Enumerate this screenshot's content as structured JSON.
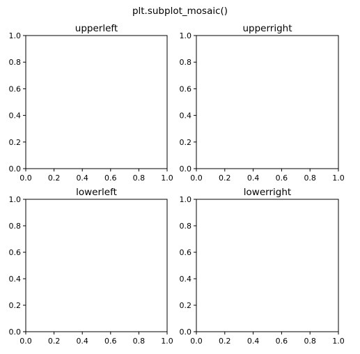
{
  "figure": {
    "suptitle": "plt.subplot_mosaic()"
  },
  "chart_data": [
    {
      "type": "line",
      "title": "upperleft",
      "xlim": [
        0,
        1
      ],
      "ylim": [
        0,
        1
      ],
      "xticks": [
        "0.0",
        "0.2",
        "0.4",
        "0.6",
        "0.8",
        "1.0"
      ],
      "yticks": [
        "0.0",
        "0.2",
        "0.4",
        "0.6",
        "0.8",
        "1.0"
      ],
      "series": [],
      "grid": false
    },
    {
      "type": "line",
      "title": "upperright",
      "xlim": [
        0,
        1
      ],
      "ylim": [
        0,
        1
      ],
      "xticks": [
        "0.0",
        "0.2",
        "0.4",
        "0.6",
        "0.8",
        "1.0"
      ],
      "yticks": [
        "0.0",
        "0.2",
        "0.4",
        "0.6",
        "0.8",
        "1.0"
      ],
      "series": [],
      "grid": false
    },
    {
      "type": "line",
      "title": "lowerleft",
      "xlim": [
        0,
        1
      ],
      "ylim": [
        0,
        1
      ],
      "xticks": [
        "0.0",
        "0.2",
        "0.4",
        "0.6",
        "0.8",
        "1.0"
      ],
      "yticks": [
        "0.0",
        "0.2",
        "0.4",
        "0.6",
        "0.8",
        "1.0"
      ],
      "series": [],
      "grid": false
    },
    {
      "type": "line",
      "title": "lowerright",
      "xlim": [
        0,
        1
      ],
      "ylim": [
        0,
        1
      ],
      "xticks": [
        "0.0",
        "0.2",
        "0.4",
        "0.6",
        "0.8",
        "1.0"
      ],
      "yticks": [
        "0.0",
        "0.2",
        "0.4",
        "0.6",
        "0.8",
        "1.0"
      ],
      "series": [],
      "grid": false
    }
  ]
}
